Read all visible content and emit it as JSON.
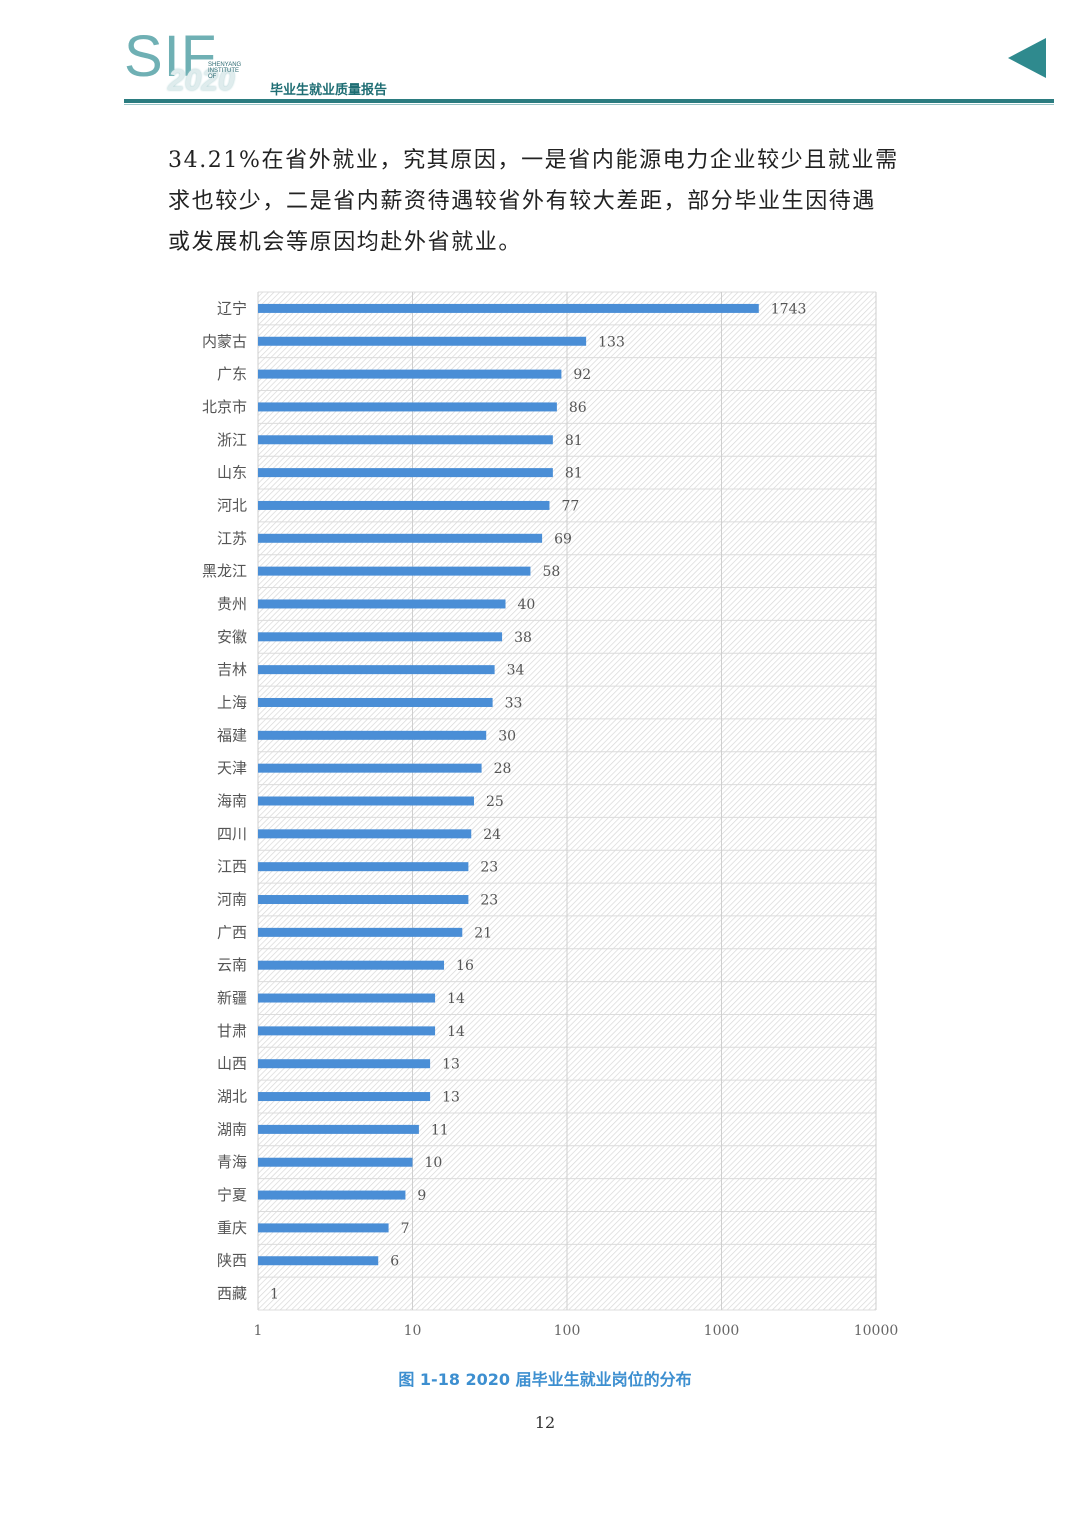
{
  "header": {
    "logo_text": "SIF",
    "logo_year": "2020",
    "logo_small": "SHENYANG INSTITUTE OF",
    "report_title": "毕业生就业质量报告"
  },
  "body": {
    "lines": [
      "34.21%在省外就业，究其原因，一是省内能源电力企业较少且就业需",
      "求也较少，二是省内薪资待遇较省外有较大差距，部分毕业生因待遇",
      "或发展机会等原因均赴外省就业。"
    ]
  },
  "chart_data": {
    "type": "bar",
    "orientation": "horizontal",
    "x_scale": "log",
    "xlim": [
      1,
      10000
    ],
    "x_ticks": [
      "1",
      "10",
      "100",
      "1000",
      "10000"
    ],
    "categories": [
      "辽宁",
      "内蒙古",
      "广东",
      "北京市",
      "浙江",
      "山东",
      "河北",
      "江苏",
      "黑龙江",
      "贵州",
      "安徽",
      "吉林",
      "上海",
      "福建",
      "天津",
      "海南",
      "四川",
      "江西",
      "河南",
      "广西",
      "云南",
      "新疆",
      "甘肃",
      "山西",
      "湖北",
      "湖南",
      "青海",
      "宁夏",
      "重庆",
      "陕西",
      "西藏"
    ],
    "values": [
      1743,
      133,
      92,
      86,
      81,
      81,
      77,
      69,
      58,
      40,
      38,
      34,
      33,
      30,
      28,
      25,
      24,
      23,
      23,
      21,
      16,
      14,
      14,
      13,
      13,
      11,
      10,
      9,
      7,
      6,
      1
    ],
    "bar_color": "#4a8ed6",
    "grid": true,
    "data_labels": true
  },
  "caption": "图 1-18  2020 届毕业生就业岗位的分布",
  "page_number": "12"
}
